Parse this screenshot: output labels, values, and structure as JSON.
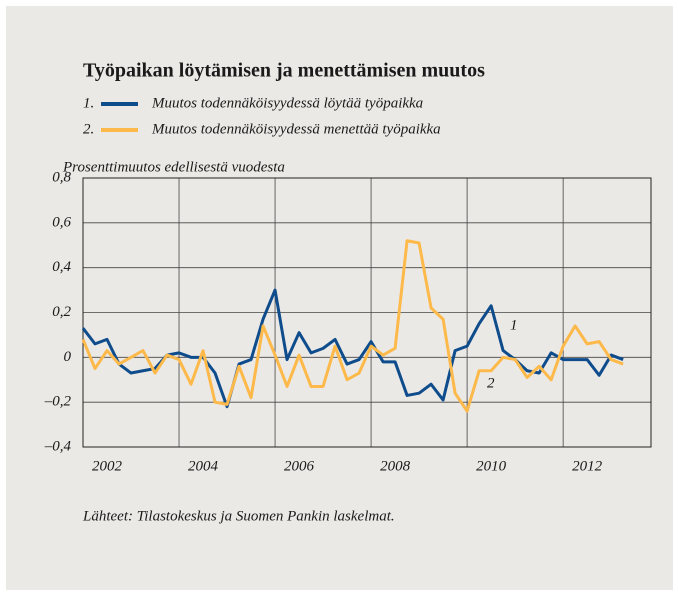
{
  "chart_data": {
    "type": "line",
    "title": "Työpaikan löytämisen ja menettämisen muutos",
    "y_label": "Prosenttimuutos edellisestä vuodesta",
    "source": "Lähteet: Tilastokeskus ja Suomen Pankin laskelmat.",
    "annotations": [
      "1",
      "2"
    ],
    "x": [
      2002,
      2002.25,
      2002.5,
      2002.75,
      2003,
      2003.25,
      2003.5,
      2003.75,
      2004,
      2004.25,
      2004.5,
      2004.75,
      2005,
      2005.25,
      2005.5,
      2005.75,
      2006,
      2006.25,
      2006.5,
      2006.75,
      2007,
      2007.25,
      2007.5,
      2007.75,
      2008,
      2008.25,
      2008.5,
      2008.75,
      2009,
      2009.25,
      2009.5,
      2009.75,
      2010,
      2010.25,
      2010.5,
      2010.75,
      2011,
      2011.25,
      2011.5,
      2011.75,
      2012,
      2012.25,
      2012.5,
      2012.75,
      2013,
      2013.25
    ],
    "series": [
      {
        "marker": "1.",
        "name": "Muutos todennäköisyydessä löytää työpaikka",
        "color": "#0e4c8c",
        "values": [
          0.13,
          0.06,
          0.08,
          -0.03,
          -0.07,
          -0.06,
          -0.05,
          0.01,
          0.02,
          0,
          0,
          -0.07,
          -0.22,
          -0.03,
          -0.01,
          0.17,
          0.3,
          -0.01,
          0.11,
          0.02,
          0.04,
          0.08,
          -0.03,
          -0.01,
          0.07,
          -0.02,
          -0.02,
          -0.17,
          -0.16,
          -0.12,
          -0.19,
          0.03,
          0.05,
          0.15,
          0.23,
          0.03,
          -0.01,
          -0.06,
          -0.07,
          0.02,
          -0.01,
          -0.01,
          -0.01,
          -0.08,
          0.01,
          -0.01
        ]
      },
      {
        "marker": "2.",
        "name": "Muutos todennäköisyydessä menettää työpaikka",
        "color": "#fdb94a",
        "values": [
          0.08,
          -0.05,
          0.03,
          -0.03,
          0.0,
          0.03,
          -0.07,
          0.01,
          -0.01,
          -0.12,
          0.03,
          -0.2,
          -0.21,
          -0.04,
          -0.18,
          0.14,
          0.01,
          -0.13,
          0.01,
          -0.13,
          -0.13,
          0.05,
          -0.1,
          -0.07,
          0.05,
          0.01,
          0.04,
          0.52,
          0.51,
          0.22,
          0.17,
          -0.16,
          -0.24,
          -0.06,
          -0.06,
          0.0,
          -0.01,
          -0.09,
          -0.04,
          -0.1,
          0.05,
          0.14,
          0.06,
          0.07,
          -0.01,
          -0.03
        ]
      }
    ],
    "xlim": [
      2002,
      2013.83
    ],
    "xticks": [
      {
        "value": 2002.5,
        "label": "2002"
      },
      {
        "value": 2004.5,
        "label": "2004"
      },
      {
        "value": 2006.5,
        "label": "2006"
      },
      {
        "value": 2008.5,
        "label": "2008"
      },
      {
        "value": 2010.5,
        "label": "2010"
      },
      {
        "value": 2012.5,
        "label": "2012"
      }
    ],
    "xgrid": [
      2004,
      2006,
      2008,
      2010,
      2012
    ],
    "ylim": [
      -0.4,
      0.8
    ],
    "yticks": [
      {
        "value": -0.4,
        "label": "–0,4"
      },
      {
        "value": -0.2,
        "label": "–0,2"
      },
      {
        "value": 0,
        "label": "0"
      },
      {
        "value": 0.2,
        "label": "0,2"
      },
      {
        "value": 0.4,
        "label": "0,4"
      },
      {
        "value": 0.6,
        "label": "0,6"
      },
      {
        "value": 0.8,
        "label": "0,8"
      }
    ],
    "grid": true
  }
}
